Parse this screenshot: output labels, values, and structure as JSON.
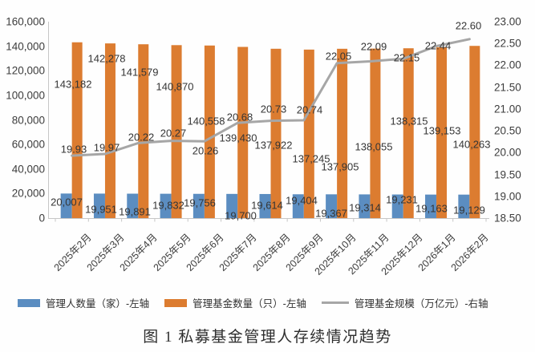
{
  "chart_data": {
    "type": "bar",
    "subtype": "bar+line combo, dual axis",
    "categories": [
      "2025年2月",
      "2025年3月",
      "2025年4月",
      "2025年5月",
      "2025年6月",
      "2025年7月",
      "2025年8月",
      "2025年9月",
      "2025年10月",
      "2025年11月",
      "2025年12月",
      "2026年1月",
      "2026年2月"
    ],
    "series": [
      {
        "name": "管理人数量（家）-左轴",
        "type": "bar",
        "axis": "left",
        "color": "#5b8dc1",
        "values": [
          20007,
          19951,
          19891,
          19832,
          19756,
          19700,
          19614,
          19404,
          19367,
          19314,
          19231,
          19163,
          19129
        ]
      },
      {
        "name": "管理基金数量（只）-左轴",
        "type": "bar",
        "axis": "left",
        "color": "#dc7c30",
        "values": [
          143182,
          142278,
          141579,
          140870,
          140558,
          139430,
          137922,
          137245,
          137905,
          138055,
          138315,
          139153,
          140263
        ]
      },
      {
        "name": "管理基金规模（万亿元）-右轴",
        "type": "line",
        "axis": "right",
        "color": "#a6a6a6",
        "values": [
          19.93,
          19.97,
          20.22,
          20.27,
          20.26,
          20.68,
          20.73,
          20.74,
          22.05,
          22.09,
          22.15,
          22.44,
          22.6
        ]
      }
    ],
    "left_axis": {
      "min": 0,
      "max": 160000,
      "step": 20000,
      "tick_labels": [
        "160,000",
        "140,000",
        "120,000",
        "100,000",
        "80,000",
        "60,000",
        "40,000",
        "20,000",
        "0"
      ]
    },
    "right_axis": {
      "min": 18.5,
      "max": 23.0,
      "step": 0.5,
      "tick_labels": [
        "23.00",
        "22.50",
        "22.00",
        "21.50",
        "21.00",
        "20.50",
        "20.00",
        "19.50",
        "19.00",
        "18.50"
      ]
    },
    "grid": false,
    "legend_position": "bottom",
    "axis_line_color": "#c6c6c6",
    "label_color": "#353535",
    "title": "",
    "xlabel": "",
    "ylabel": ""
  },
  "caption": "图 1 私募基金管理人存续情况趋势"
}
